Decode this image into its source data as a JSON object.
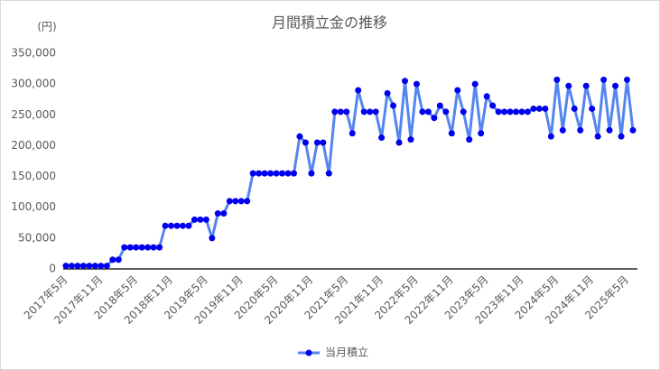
{
  "chart_data": {
    "type": "line",
    "title": "月間積立金の推移",
    "y_label": "(円)",
    "categories": [
      "2017年5月",
      null,
      null,
      null,
      null,
      null,
      "2017年11月",
      null,
      null,
      null,
      null,
      null,
      "2018年5月",
      null,
      null,
      null,
      null,
      null,
      "2018年11月",
      null,
      null,
      null,
      null,
      null,
      "2019年5月",
      null,
      null,
      null,
      null,
      null,
      "2019年11月",
      null,
      null,
      null,
      null,
      null,
      "2020年5月",
      null,
      null,
      null,
      null,
      null,
      "2020年11月",
      null,
      null,
      null,
      null,
      null,
      "2021年5月",
      null,
      null,
      null,
      null,
      null,
      "2021年11月",
      null,
      null,
      null,
      null,
      null,
      "2022年5月",
      null,
      null,
      null,
      null,
      null,
      "2022年11月",
      null,
      null,
      null,
      null,
      null,
      "2023年5月",
      null,
      null,
      null,
      null,
      null,
      "2023年11月",
      null,
      null,
      null,
      null,
      null,
      "2024年5月",
      null,
      null,
      null,
      null,
      null,
      "2024年11月",
      null,
      null,
      null,
      null,
      null,
      "2025年5月",
      null
    ],
    "series": [
      {
        "name": "当月積立",
        "color": "#5585f0",
        "marker_color": "#0000ee",
        "values": [
          5000,
          5000,
          5000,
          5000,
          5000,
          5000,
          5000,
          5000,
          15000,
          15000,
          35000,
          35000,
          35000,
          35000,
          35000,
          35000,
          35000,
          70000,
          70000,
          70000,
          70000,
          70000,
          80000,
          80000,
          80000,
          50000,
          90000,
          90000,
          110000,
          110000,
          110000,
          110000,
          155000,
          155000,
          155000,
          155000,
          155000,
          155000,
          155000,
          155000,
          215000,
          205000,
          155000,
          205000,
          205000,
          155000,
          255000,
          255000,
          255000,
          220000,
          290000,
          255000,
          255000,
          255000,
          213000,
          285000,
          265000,
          205000,
          305000,
          210000,
          300000,
          255000,
          255000,
          245000,
          265000,
          255000,
          220000,
          290000,
          255000,
          210000,
          300000,
          220000,
          280000,
          265000,
          255000,
          255000,
          255000,
          255000,
          255000,
          255000,
          260000,
          260000,
          260000,
          215000,
          307000,
          225000,
          297000,
          260000,
          225000,
          297000,
          260000,
          215000,
          307000,
          225000,
          297000,
          215000,
          307000,
          225000
        ]
      }
    ],
    "ylim": [
      0,
      350000
    ],
    "yticks": [
      0,
      {
        "value": 50000,
        "label": "50,000"
      },
      {
        "value": 100000,
        "label": "100,000"
      },
      {
        "value": 150000,
        "label": "150,000"
      },
      {
        "value": 200000,
        "label": "200,000"
      },
      {
        "value": 250000,
        "label": "250,000"
      },
      {
        "value": 300000,
        "label": "300,000"
      },
      {
        "value": 350000,
        "label": "350,000"
      }
    ],
    "grid": false,
    "legend": "bottom"
  }
}
